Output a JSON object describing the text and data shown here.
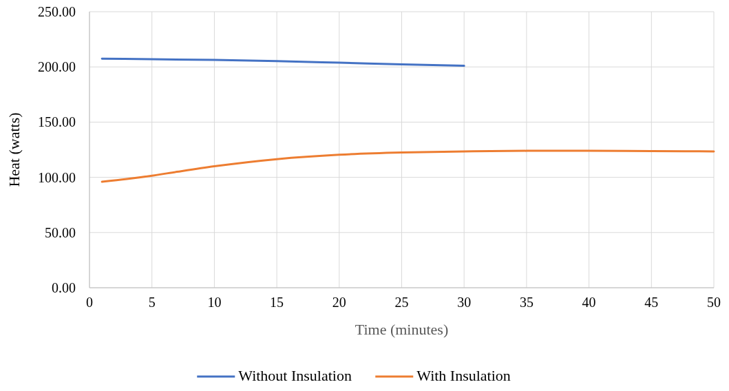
{
  "chart_data": {
    "type": "line",
    "xlabel": "Time (minutes)",
    "ylabel": "Heat (watts)",
    "xlim": [
      0,
      50
    ],
    "xticks": [
      0,
      5,
      10,
      15,
      20,
      25,
      30,
      35,
      40,
      45,
      50
    ],
    "ylim": [
      0,
      250
    ],
    "yticks": [
      {
        "value": 0,
        "label": "0.00"
      },
      {
        "value": 50,
        "label": "50.00"
      },
      {
        "value": 100,
        "label": "100.00"
      },
      {
        "value": 150,
        "label": "150.00"
      },
      {
        "value": 200,
        "label": "200.00"
      },
      {
        "value": 250,
        "label": "250.00"
      }
    ],
    "grid": true,
    "legend": "bottom",
    "series": [
      {
        "name": "Without Insulation",
        "color": "#4472c4",
        "x": [
          1,
          5,
          10,
          15,
          20,
          25,
          30
        ],
        "values": [
          207.5,
          207,
          206.3,
          205.2,
          203.8,
          202.3,
          201
        ]
      },
      {
        "name": "With Insulation",
        "color": "#ed7d31",
        "x": [
          1,
          3,
          5,
          7,
          10,
          15,
          20,
          25,
          30,
          35,
          40,
          45,
          50
        ],
        "values": [
          96,
          98.5,
          101.5,
          105,
          110,
          116.5,
          120.5,
          122.5,
          123.5,
          124,
          124,
          123.8,
          123.5
        ]
      }
    ]
  }
}
